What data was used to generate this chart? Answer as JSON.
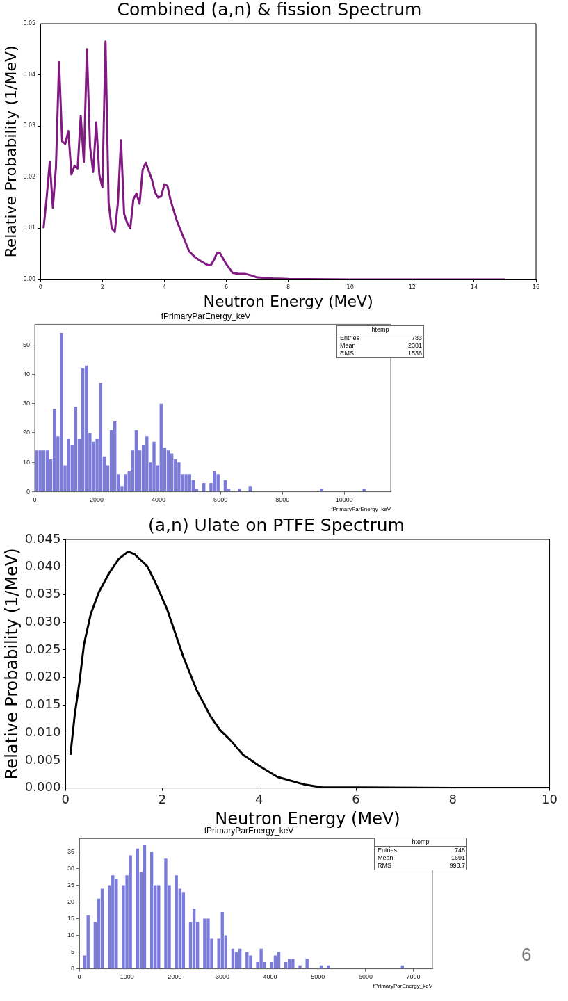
{
  "chart_data": [
    {
      "type": "line",
      "title": "Combined (a,n) & fission Spectrum",
      "xlabel": "Neutron Energy (MeV)",
      "ylabel": "Relative Probability (1/MeV)",
      "color": "#801a80",
      "x": [
        0.1,
        0.2,
        0.3,
        0.4,
        0.5,
        0.6,
        0.7,
        0.8,
        0.9,
        1.0,
        1.1,
        1.2,
        1.3,
        1.4,
        1.5,
        1.6,
        1.7,
        1.8,
        1.9,
        2.0,
        2.1,
        2.2,
        2.3,
        2.4,
        2.5,
        2.6,
        2.7,
        2.8,
        2.9,
        3.0,
        3.1,
        3.2,
        3.3,
        3.4,
        3.6,
        3.7,
        3.8,
        3.9,
        4.0,
        4.1,
        4.2,
        4.4,
        4.6,
        4.8,
        5.0,
        5.2,
        5.4,
        5.5,
        5.6,
        5.7,
        5.8,
        6.0,
        6.2,
        6.4,
        6.6,
        6.8,
        7.0,
        7.5,
        8,
        10,
        12,
        15
      ],
      "values": [
        0.01,
        0.016,
        0.023,
        0.014,
        0.022,
        0.0425,
        0.027,
        0.0265,
        0.029,
        0.0205,
        0.0222,
        0.0217,
        0.032,
        0.023,
        0.045,
        0.026,
        0.021,
        0.0307,
        0.0205,
        0.018,
        0.0465,
        0.015,
        0.01,
        0.0093,
        0.015,
        0.0272,
        0.0128,
        0.011,
        0.01,
        0.0157,
        0.0168,
        0.0148,
        0.0215,
        0.0228,
        0.0195,
        0.017,
        0.016,
        0.0163,
        0.0186,
        0.0183,
        0.0155,
        0.0115,
        0.0085,
        0.0055,
        0.0043,
        0.0035,
        0.0028,
        0.0028,
        0.0038,
        0.0052,
        0.0051,
        0.003,
        0.0013,
        0.0011,
        0.0011,
        0.0008,
        0.0004,
        0.0002,
        0.0001,
        0.0,
        0.0,
        0.0
      ],
      "xlim": [
        0,
        16
      ],
      "xticks": [
        0,
        2,
        4,
        6,
        8,
        10,
        12,
        14,
        16
      ],
      "ylim": [
        0,
        0.05
      ],
      "yticks": [
        {
          "value": 0,
          "label": "0.00"
        },
        {
          "value": 0.01,
          "label": "0.01"
        },
        {
          "value": 0.02,
          "label": "0.02"
        },
        {
          "value": 0.03,
          "label": "0.03"
        },
        {
          "value": 0.04,
          "label": "0.04"
        },
        {
          "value": 0.05,
          "label": "0.05"
        }
      ]
    },
    {
      "type": "histogram",
      "title": "fPrimaryParEnergy_keV",
      "xlabel": "fPrimaryParEnergy_keV",
      "color": "#7b7bdb",
      "bins": [
        0,
        115,
        230,
        345,
        460,
        575,
        690,
        805,
        920,
        1035,
        1150,
        1265,
        1380,
        1495,
        1610,
        1725,
        1840,
        1955,
        2070,
        2185,
        2300,
        2415,
        2530,
        2645,
        2760,
        2875,
        2990,
        3105,
        3220,
        3335,
        3450,
        3565,
        3680,
        3795,
        3910,
        4025,
        4140,
        4255,
        4370,
        4485,
        4600,
        4715,
        4830,
        4945,
        5060,
        5175,
        5290,
        5405,
        5520,
        5635,
        5750,
        5865,
        5980,
        6095,
        6210,
        6325,
        6440,
        6555,
        6670,
        6785,
        6900,
        7015,
        7130,
        7245,
        7360,
        7475,
        7590,
        7705,
        7820,
        7935,
        8050,
        8165,
        8280,
        8395,
        8510,
        8625,
        8740,
        8855,
        8970,
        9085,
        9200,
        9315,
        9430,
        9545,
        9660,
        9775,
        9890,
        10005,
        10120,
        10235,
        10350,
        10465,
        10580,
        10695,
        10810,
        10925,
        11040,
        11155,
        11270,
        11385,
        11500
      ],
      "values": [
        14,
        14,
        14,
        14,
        11,
        28,
        19,
        54,
        9,
        18,
        16,
        29,
        18,
        42,
        43,
        20,
        17,
        18,
        37,
        12,
        9,
        21,
        24,
        6,
        2,
        6,
        7,
        14,
        21,
        14,
        16,
        19,
        10,
        17,
        9,
        30,
        15,
        14,
        13,
        11,
        10,
        6,
        6,
        6,
        4,
        1,
        0,
        3,
        0,
        3,
        7,
        6,
        0,
        4,
        1,
        0,
        0,
        1,
        0,
        0,
        2,
        0,
        0,
        0,
        0,
        0,
        0,
        0,
        0,
        0,
        0,
        0,
        0,
        0,
        0,
        0,
        0,
        0,
        0,
        0,
        1,
        0,
        0,
        0,
        0,
        0,
        0,
        0,
        0,
        0,
        0,
        0,
        1,
        0,
        0,
        0,
        0,
        0,
        0,
        0
      ],
      "xlim": [
        0,
        11500
      ],
      "xticks": [
        0,
        2000,
        4000,
        6000,
        8000,
        10000
      ],
      "ylim": [
        0,
        57
      ],
      "yticks": [
        0,
        10,
        20,
        30,
        40,
        50
      ],
      "annotations": [
        "htemp",
        "Entries 783",
        "Mean 2381",
        "RMS 1536"
      ]
    },
    {
      "type": "line",
      "title": "(a,n) Ulate on PTFE Spectrum",
      "xlabel": "Neutron Energy (MeV)",
      "ylabel": "Relative Probability (1/MeV)",
      "color": "#000000",
      "x": [
        0.1,
        0.19,
        0.29,
        0.38,
        0.52,
        0.69,
        0.9,
        1.1,
        1.29,
        1.43,
        1.69,
        1.86,
        2.1,
        2.43,
        2.71,
        3.0,
        3.19,
        3.38,
        3.67,
        4.0,
        4.38,
        4.95,
        5.3,
        6,
        8,
        10
      ],
      "values": [
        0.006,
        0.0133,
        0.0194,
        0.026,
        0.0315,
        0.0355,
        0.0389,
        0.0415,
        0.0428,
        0.0423,
        0.0401,
        0.0371,
        0.0323,
        0.0238,
        0.0177,
        0.0129,
        0.0105,
        0.0089,
        0.006,
        0.004,
        0.002,
        0.0006,
        0.0001,
        0.0001,
        0.0,
        0.0
      ],
      "xlim": [
        0,
        10
      ],
      "xticks": [
        0,
        2,
        4,
        6,
        8,
        10
      ],
      "ylim": [
        0,
        0.045
      ],
      "yticks": [
        {
          "value": 0,
          "label": "0.000"
        },
        {
          "value": 0.005,
          "label": "0.005"
        },
        {
          "value": 0.01,
          "label": "0.010"
        },
        {
          "value": 0.015,
          "label": "0.015"
        },
        {
          "value": 0.02,
          "label": "0.020"
        },
        {
          "value": 0.025,
          "label": "0.025"
        },
        {
          "value": 0.03,
          "label": "0.030"
        },
        {
          "value": 0.035,
          "label": "0.035"
        },
        {
          "value": 0.04,
          "label": "0.040"
        },
        {
          "value": 0.045,
          "label": "0.045"
        }
      ]
    },
    {
      "type": "histogram",
      "title": "fPrimaryParEnergy_keV",
      "xlabel": "fPrimaryParEnergy_keV",
      "color": "#7b7bdb",
      "bins": [
        0,
        74,
        148,
        222,
        296,
        370,
        444,
        518,
        592,
        666,
        740,
        814,
        888,
        962,
        1036,
        1110,
        1184,
        1258,
        1332,
        1406,
        1480,
        1554,
        1628,
        1702,
        1776,
        1850,
        1924,
        1998,
        2072,
        2146,
        2220,
        2294,
        2368,
        2442,
        2516,
        2590,
        2664,
        2738,
        2812,
        2886,
        2960,
        3034,
        3108,
        3182,
        3256,
        3330,
        3404,
        3478,
        3552,
        3626,
        3700,
        3774,
        3848,
        3922,
        3996,
        4070,
        4144,
        4218,
        4292,
        4366,
        4440,
        4514,
        4588,
        4662,
        4736,
        4810,
        4884,
        4958,
        5032,
        5106,
        5180,
        5254,
        5328,
        5402,
        5476,
        5550,
        5624,
        5698,
        5772,
        5846,
        5920,
        5994,
        6068,
        6142,
        6216,
        6290,
        6364,
        6438,
        6512,
        6586,
        6660,
        6734,
        6808,
        6882,
        6956,
        7030,
        7104,
        7178,
        7252,
        7326,
        7400
      ],
      "values": [
        0,
        4,
        16,
        0,
        14,
        21,
        24,
        0,
        25,
        28,
        27,
        0,
        25,
        28,
        34,
        0,
        36,
        29,
        37,
        0,
        35,
        25,
        25,
        0,
        33,
        25,
        0,
        28,
        24,
        23,
        0,
        14,
        18,
        14,
        0,
        15,
        15,
        9,
        0,
        9,
        17,
        10,
        0,
        6,
        5,
        6,
        0,
        5,
        4,
        0,
        2,
        6,
        2,
        0,
        2,
        4,
        5,
        0,
        2,
        3,
        3,
        0,
        1,
        0,
        3,
        0,
        0,
        0,
        1,
        0,
        1,
        0,
        0,
        0,
        0,
        0,
        0,
        0,
        0,
        0,
        0,
        0,
        0,
        0,
        0,
        0,
        0,
        0,
        0,
        0,
        0,
        1,
        0,
        0,
        0,
        0,
        0,
        0,
        0,
        0
      ],
      "xlim": [
        0,
        7400
      ],
      "xticks": [
        0,
        1000,
        2000,
        3000,
        4000,
        5000,
        6000,
        7000
      ],
      "ylim": [
        0,
        39
      ],
      "yticks": [
        0,
        5,
        10,
        15,
        20,
        25,
        30,
        35
      ],
      "annotations": [
        "htemp",
        "Entries 748",
        "Mean 1691",
        "RMS 993.7",
        "6"
      ]
    }
  ]
}
